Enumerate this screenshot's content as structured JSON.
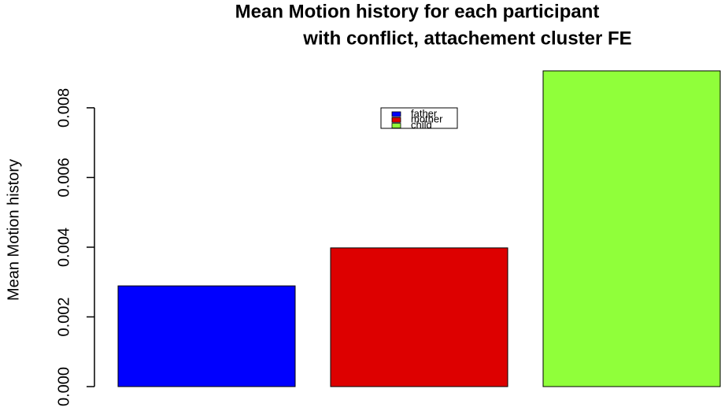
{
  "chart_data": {
    "type": "bar",
    "title": [
      "Mean Motion history for each participant",
      "with conflict, attachement cluster FE"
    ],
    "y_label": "Mean Motion history",
    "categories": [
      "father",
      "mother",
      "child"
    ],
    "values": [
      0.00289,
      0.00398,
      0.00906
    ],
    "colors": [
      "#0000ff",
      "#dd0000",
      "#90ff3a"
    ],
    "ylim": [
      0,
      0.00906
    ],
    "yticks": [
      {
        "value": 0,
        "label": "0.000"
      },
      0.002,
      0.004,
      0.006,
      0.008
    ],
    "legend": "top"
  }
}
